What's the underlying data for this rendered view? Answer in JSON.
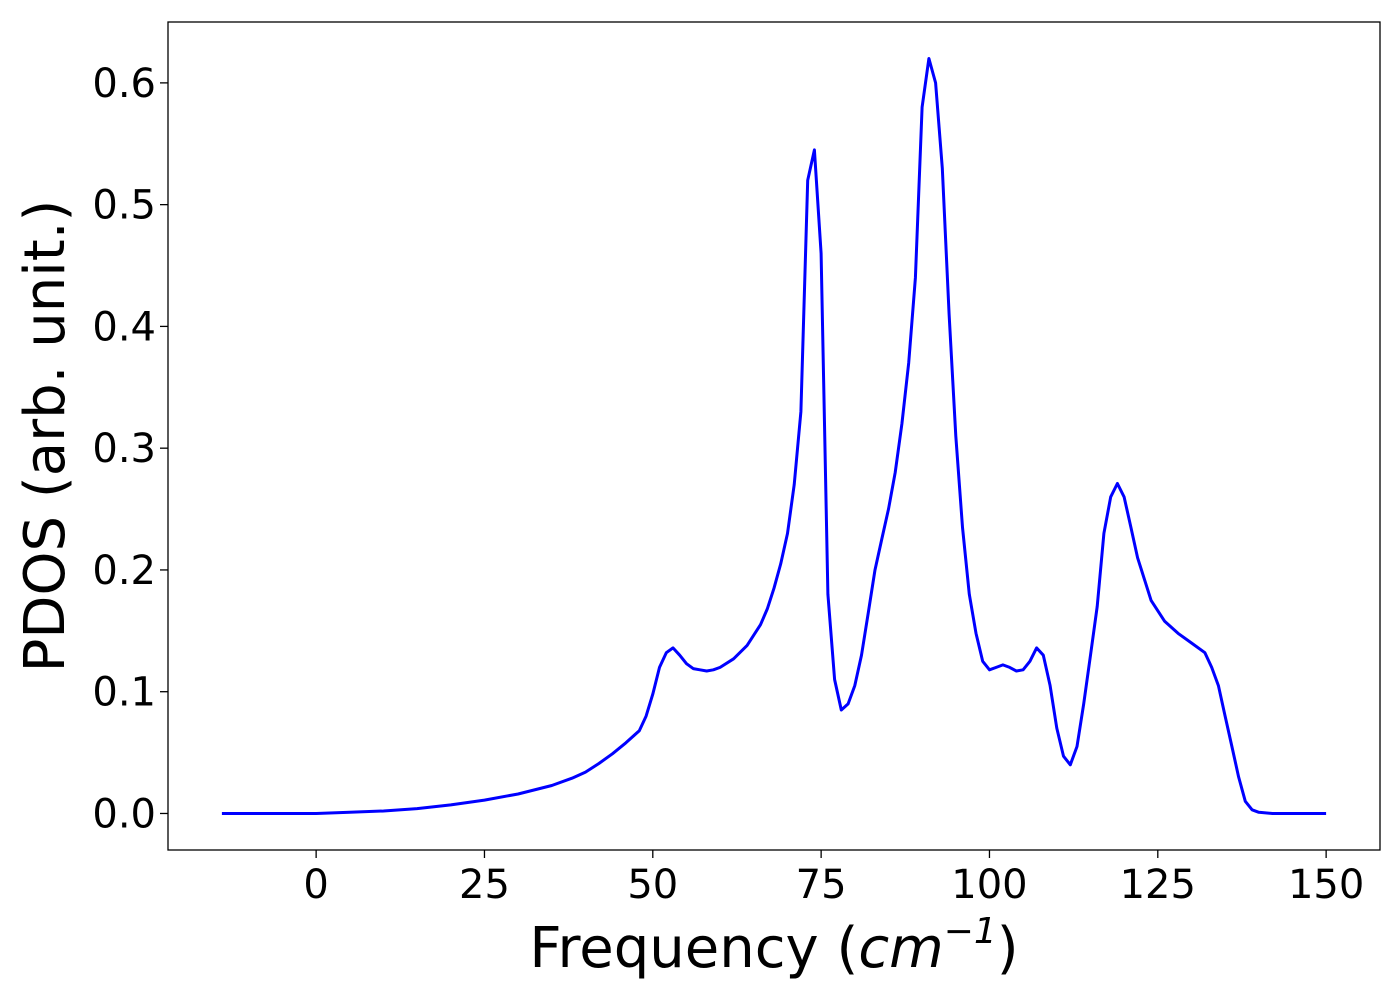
{
  "chart_data": {
    "type": "line",
    "title": "",
    "xlabel": "Frequency",
    "xlabel_unit": "cm",
    "xlabel_unit_exponent": "−1",
    "ylabel": "PDOS (arb. unit.)",
    "xlim": [
      -22,
      158
    ],
    "ylim": [
      -0.03,
      0.65
    ],
    "xticks": [
      0,
      25,
      50,
      75,
      100,
      125,
      150
    ],
    "xtick_labels": [
      "0",
      "25",
      "50",
      "75",
      "100",
      "125",
      "150"
    ],
    "yticks": [
      0.0,
      0.1,
      0.2,
      0.3,
      0.4,
      0.5,
      0.6
    ],
    "ytick_labels": [
      "0.0",
      "0.1",
      "0.2",
      "0.3",
      "0.4",
      "0.5",
      "0.6"
    ],
    "grid": false,
    "legend": "none",
    "series": [
      {
        "color": "#0000ff",
        "x": [
          -14,
          -5,
          0,
          5,
          10,
          15,
          20,
          25,
          30,
          35,
          38,
          40,
          42,
          44,
          46,
          48,
          49,
          50,
          51,
          52,
          53,
          54,
          55,
          56,
          57,
          58,
          59,
          60,
          62,
          64,
          66,
          67,
          68,
          69,
          70,
          71,
          72,
          73,
          74,
          75,
          76,
          77,
          78,
          79,
          80,
          81,
          82,
          83,
          84,
          85,
          86,
          87,
          88,
          89,
          90,
          91,
          92,
          93,
          94,
          95,
          96,
          97,
          98,
          99,
          100,
          101,
          102,
          103,
          104,
          105,
          106,
          107,
          108,
          109,
          110,
          111,
          112,
          113,
          114,
          115,
          116,
          117,
          118,
          119,
          120,
          121,
          122,
          124,
          126,
          128,
          130,
          132,
          133,
          134,
          135,
          136,
          137,
          138,
          139,
          140,
          142,
          150
        ],
        "y": [
          0.0,
          0.0,
          0.0,
          0.001,
          0.002,
          0.004,
          0.007,
          0.011,
          0.016,
          0.023,
          0.029,
          0.034,
          0.041,
          0.049,
          0.058,
          0.068,
          0.08,
          0.098,
          0.12,
          0.132,
          0.136,
          0.13,
          0.123,
          0.119,
          0.118,
          0.117,
          0.118,
          0.12,
          0.127,
          0.138,
          0.155,
          0.168,
          0.185,
          0.205,
          0.23,
          0.27,
          0.33,
          0.52,
          0.545,
          0.46,
          0.18,
          0.11,
          0.085,
          0.09,
          0.105,
          0.13,
          0.165,
          0.2,
          0.225,
          0.25,
          0.28,
          0.32,
          0.37,
          0.44,
          0.58,
          0.62,
          0.6,
          0.53,
          0.41,
          0.31,
          0.235,
          0.18,
          0.148,
          0.125,
          0.118,
          0.12,
          0.122,
          0.12,
          0.117,
          0.118,
          0.125,
          0.136,
          0.13,
          0.105,
          0.07,
          0.047,
          0.04,
          0.055,
          0.09,
          0.13,
          0.17,
          0.23,
          0.26,
          0.271,
          0.26,
          0.235,
          0.21,
          0.175,
          0.158,
          0.148,
          0.14,
          0.132,
          0.12,
          0.105,
          0.08,
          0.055,
          0.03,
          0.01,
          0.003,
          0.001,
          0.0,
          0.0
        ]
      }
    ]
  }
}
